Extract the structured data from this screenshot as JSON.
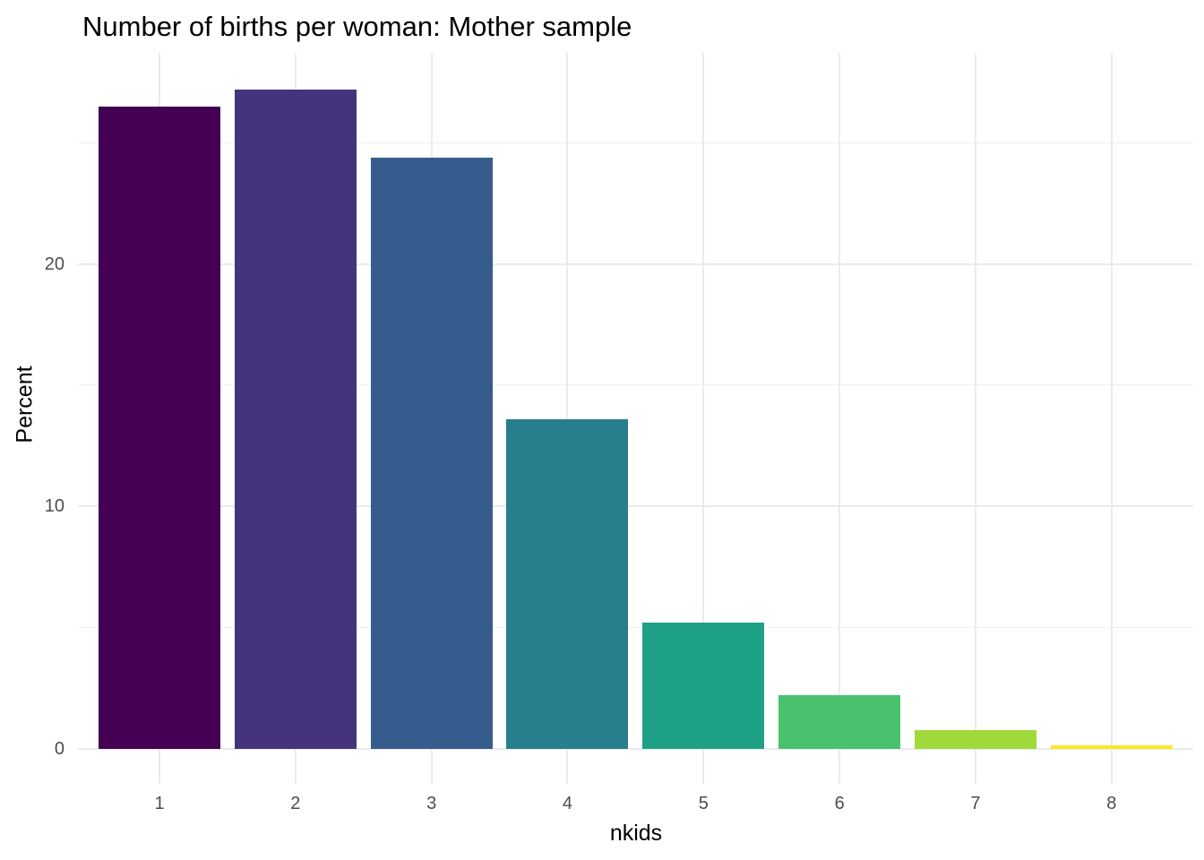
{
  "chart_data": {
    "type": "bar",
    "title": "Number of births per woman: Mother sample",
    "xlabel": "nkids",
    "ylabel": "Percent",
    "categories": [
      "1",
      "2",
      "3",
      "4",
      "5",
      "6",
      "7",
      "8"
    ],
    "values": [
      26.5,
      27.2,
      24.4,
      13.6,
      5.2,
      2.2,
      0.75,
      0.15
    ],
    "bar_colors": [
      "#440154",
      "#46337E",
      "#365C8D",
      "#277F8E",
      "#1FA187",
      "#4AC16D",
      "#9FDA3A",
      "#FDE725"
    ],
    "y_ticks": [
      0,
      10,
      20
    ],
    "y_minor_gridlines": [
      5,
      15,
      25
    ],
    "ylim": [
      -1.45,
      28.7
    ],
    "grid": "major and minor horizontal, major vertical",
    "legend": "none",
    "colors": {
      "grid_major": "#EBEBEB",
      "grid_minor": "#EFEFEF",
      "axis_text": "#4D4D4D",
      "title_text": "#000000",
      "background": "#FFFFFF"
    }
  }
}
